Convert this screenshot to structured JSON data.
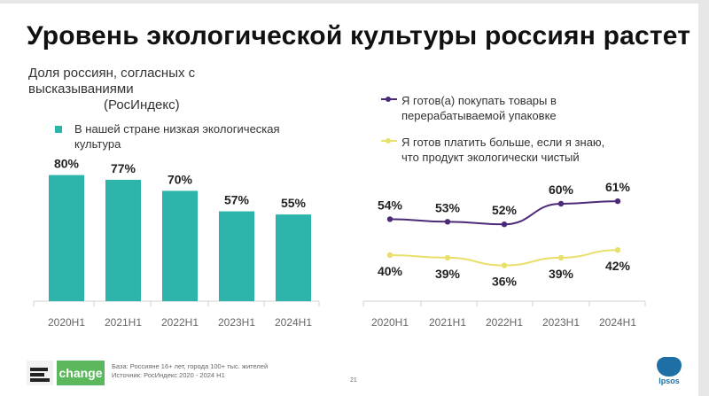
{
  "title": "Уровень экологической культуры россиян растет",
  "subtitle": {
    "line1": "Доля россиян, согласных с",
    "line2": "высказываниями",
    "line3": "(РосИндекс)"
  },
  "colors": {
    "bar": "#2db5ab",
    "series1": "#4b2a78",
    "series2": "#e8e06a",
    "axis": "#d0d0d0",
    "label": "#222222"
  },
  "chart_data": [
    {
      "type": "bar",
      "categories": [
        "2020H1",
        "2021H1",
        "2022H1",
        "2023H1",
        "2024H1"
      ],
      "series": [
        {
          "name": "В нашей стране низкая экологическая культура",
          "values": [
            80,
            77,
            70,
            57,
            55
          ]
        }
      ],
      "value_labels": [
        "80%",
        "77%",
        "70%",
        "57%",
        "55%"
      ],
      "ylim": [
        0,
        100
      ],
      "grid": false,
      "legend_position": "top-left"
    },
    {
      "type": "line",
      "categories": [
        "2020H1",
        "2021H1",
        "2022H1",
        "2023H1",
        "2024H1"
      ],
      "series": [
        {
          "name": "Я готов(а) покупать товары в перерабатываемой упаковке",
          "values": [
            54,
            53,
            52,
            60,
            61
          ],
          "value_labels": [
            "54%",
            "53%",
            "52%",
            "60%",
            "61%"
          ]
        },
        {
          "name": "Я готов платить больше, если я знаю, что продукт экологически чистый",
          "values": [
            40,
            39,
            36,
            39,
            42
          ],
          "value_labels": [
            "40%",
            "39%",
            "36%",
            "39%",
            "42%"
          ]
        }
      ],
      "ylim": [
        0,
        100
      ],
      "grid": false,
      "legend_position": "top"
    }
  ],
  "footer": {
    "brand": "change",
    "base": "База: Россияне 16+ лет, города 100+ тыс. жителей",
    "source": "Источник: РосИндекс 2020 - 2024 H1",
    "page_number": "21",
    "ipsos": "Ipsos"
  }
}
